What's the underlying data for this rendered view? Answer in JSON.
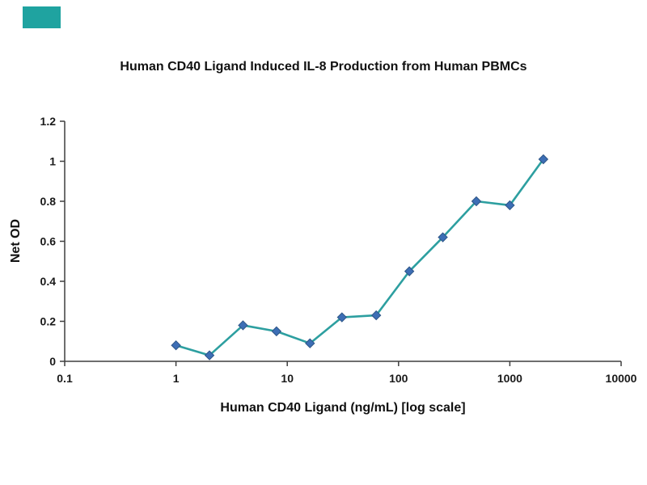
{
  "decor": {
    "corner_color": "#1fa3a0"
  },
  "chart_data": {
    "type": "line",
    "title": "Human CD40 Ligand Induced IL-8 Production from Human PBMCs",
    "xlabel": "Human CD40 Ligand (ng/mL) [log scale]",
    "ylabel": "Net OD",
    "x_scale": "log",
    "xlim": [
      0.1,
      10000
    ],
    "ylim": [
      0,
      1.2
    ],
    "x_ticks": [
      0.1,
      1,
      10,
      100,
      1000,
      10000
    ],
    "x_tick_labels": [
      "0.1",
      "1",
      "10",
      "100",
      "1000",
      "10000"
    ],
    "y_ticks": [
      0,
      0.2,
      0.4,
      0.6,
      0.8,
      1,
      1.2
    ],
    "y_tick_labels": [
      "0",
      "0.2",
      "0.4",
      "0.6",
      "0.8",
      "1",
      "1.2"
    ],
    "grid": false,
    "legend": false,
    "axis_color": "#3f3f3f",
    "series": [
      {
        "name": "Net OD",
        "marker": "diamond",
        "line_color": "#2d9fa0",
        "marker_color": "#3d6eb5",
        "marker_edge_color": "#2d5586",
        "x": [
          1,
          2,
          4,
          8,
          16,
          31,
          63,
          125,
          250,
          500,
          1000,
          2000
        ],
        "y": [
          0.08,
          0.03,
          0.18,
          0.15,
          0.09,
          0.22,
          0.23,
          0.45,
          0.62,
          0.8,
          0.78,
          1.01
        ]
      }
    ]
  }
}
